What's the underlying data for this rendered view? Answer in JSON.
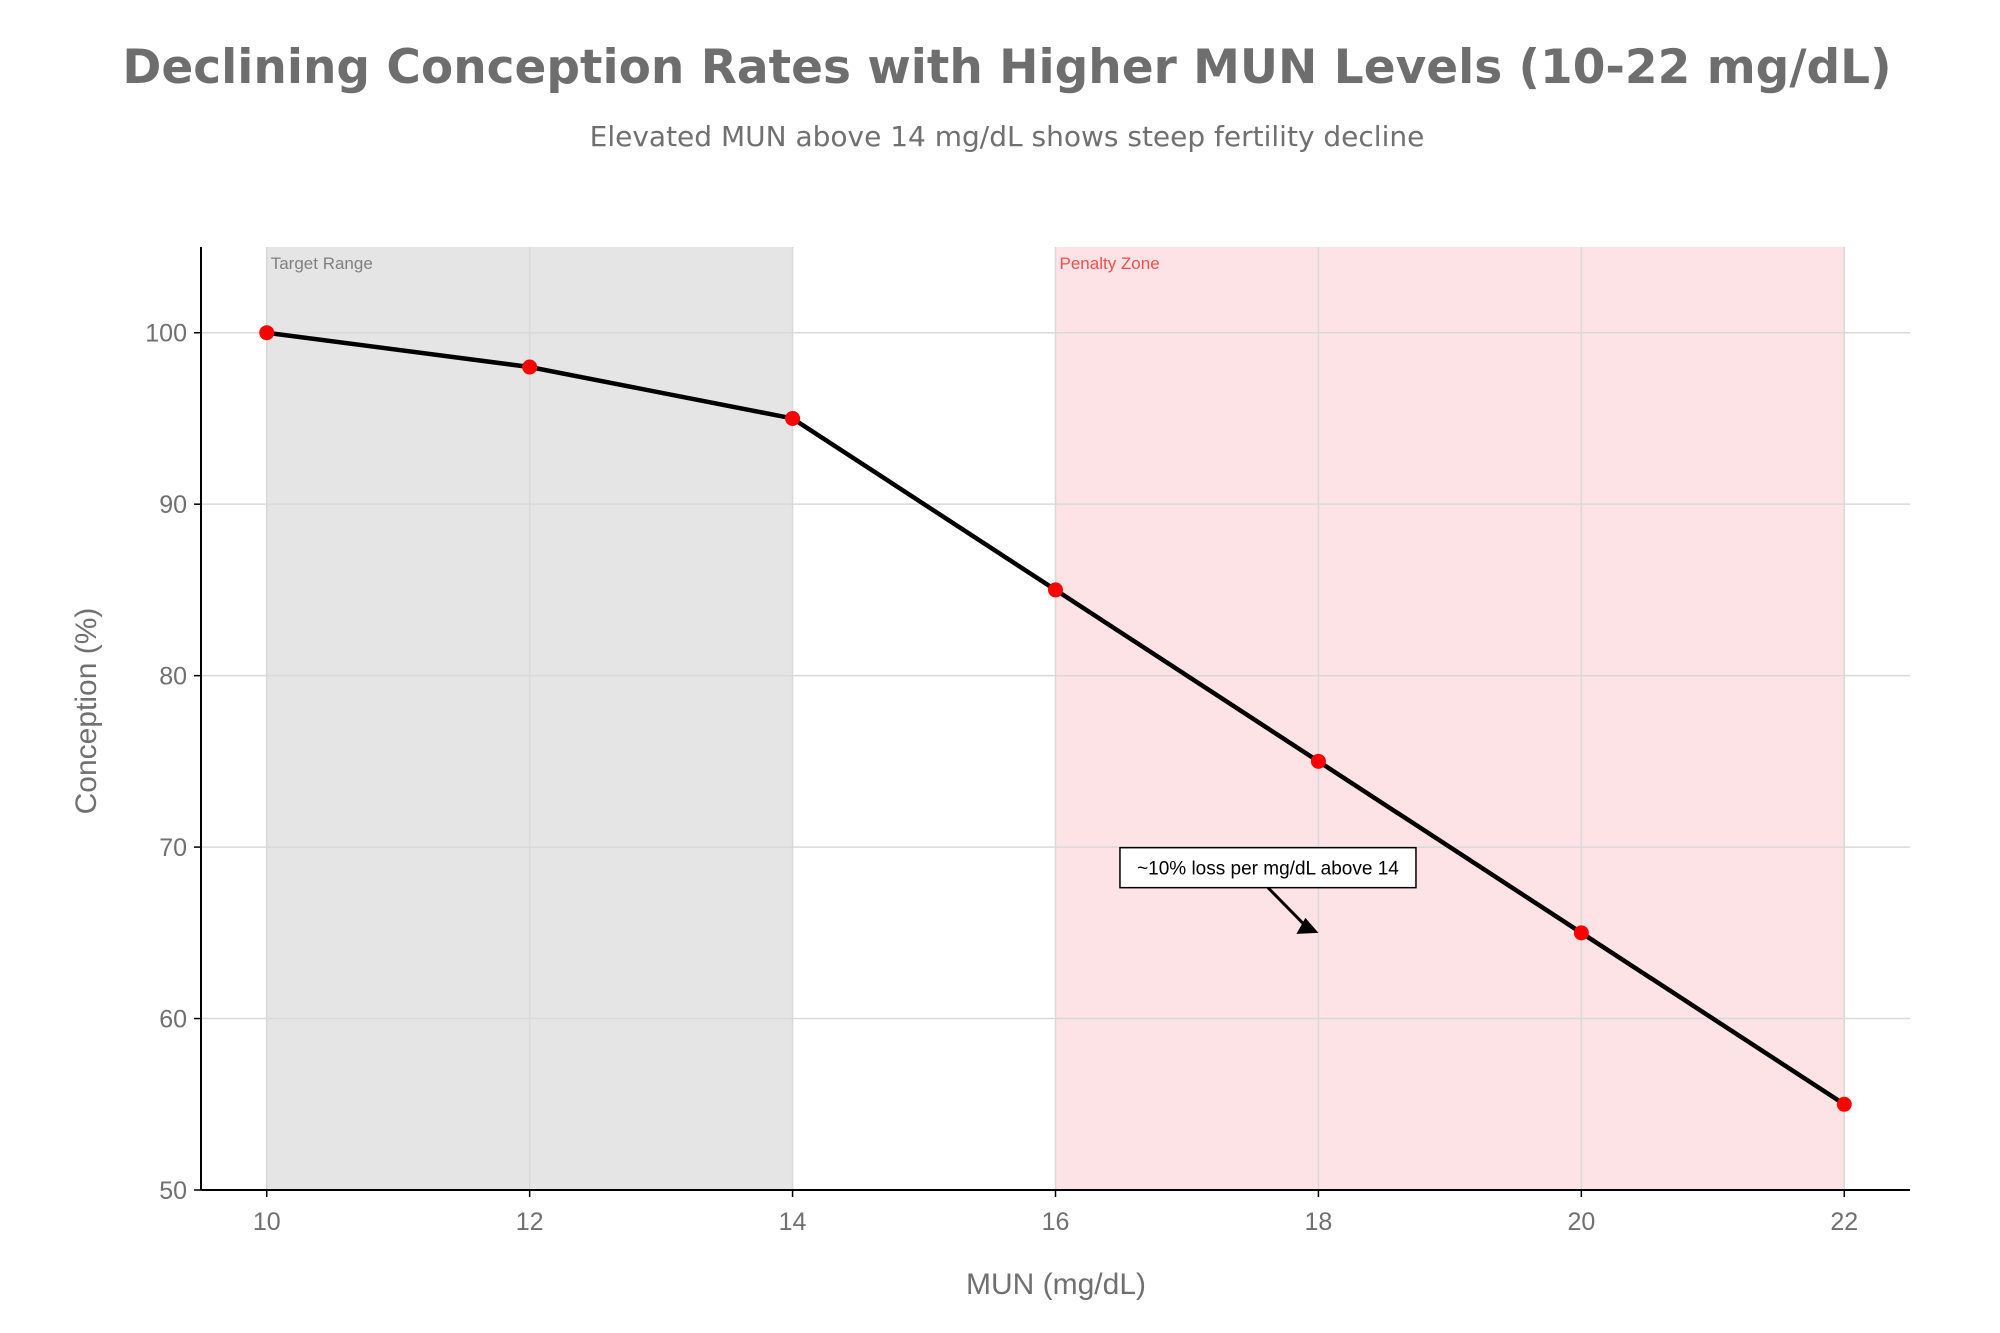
{
  "chart_data": {
    "type": "line",
    "title": "Declining Conception Rates with Higher MUN Levels (10-22 mg/dL)",
    "subtitle": "Elevated MUN above 14 mg/dL shows steep fertility decline",
    "xlabel": "MUN (mg/dL)",
    "ylabel": "Conception (%)",
    "xlim": [
      9.5,
      22.5
    ],
    "ylim": [
      50,
      105
    ],
    "xticks": [
      10,
      12,
      14,
      16,
      18,
      20,
      22
    ],
    "yticks": [
      50,
      60,
      70,
      80,
      90,
      100
    ],
    "grid": true,
    "series": [
      {
        "name": "Conception",
        "x": [
          10,
          12,
          14,
          16,
          18,
          20,
          22
        ],
        "y": [
          100,
          98,
          95,
          85,
          75,
          65,
          55
        ],
        "line_color": "#000000",
        "marker_color": "#ff0000"
      }
    ],
    "shaded_regions": [
      {
        "label": "Target Range",
        "x0": 10,
        "x1": 14,
        "color": "#e5e5e5",
        "label_color": "#808080"
      },
      {
        "label": "Penalty Zone",
        "x0": 16,
        "x1": 22,
        "color": "#fde3e5",
        "label_color": "#ff4d4d"
      }
    ],
    "annotation": {
      "text": "~10% loss per mg/dL above 14",
      "x": 18,
      "y": 65,
      "text_x": 17,
      "text_y": 68.8
    }
  }
}
